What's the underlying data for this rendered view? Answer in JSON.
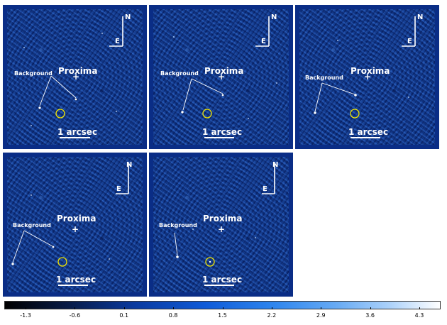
{
  "panels": [
    {
      "proxima": "Proxima",
      "background": "Background",
      "scale": "1 arcsec",
      "north": "N",
      "east": "E"
    },
    {
      "proxima": "Proxima",
      "background": "Background",
      "scale": "1 arcsec",
      "north": "N",
      "east": "E"
    },
    {
      "proxima": "Proxima",
      "background": "Background",
      "scale": "1 arcsec",
      "north": "N",
      "east": "E"
    },
    {
      "proxima": "Proxima",
      "background": "Background",
      "scale": "1 arcsec",
      "north": "N",
      "east": "E"
    },
    {
      "proxima": "Proxima",
      "background": "Background",
      "scale": "1 arcsec",
      "north": "N",
      "east": "E"
    }
  ],
  "colorbar": {
    "ticks": [
      "-1.3",
      "-0.6",
      "0.1",
      "0.8",
      "1.5",
      "2.2",
      "2.9",
      "3.6",
      "4.3"
    ],
    "colors": [
      "#000000",
      "#0a3aa0",
      "#2f86ee",
      "#ffffff"
    ]
  }
}
